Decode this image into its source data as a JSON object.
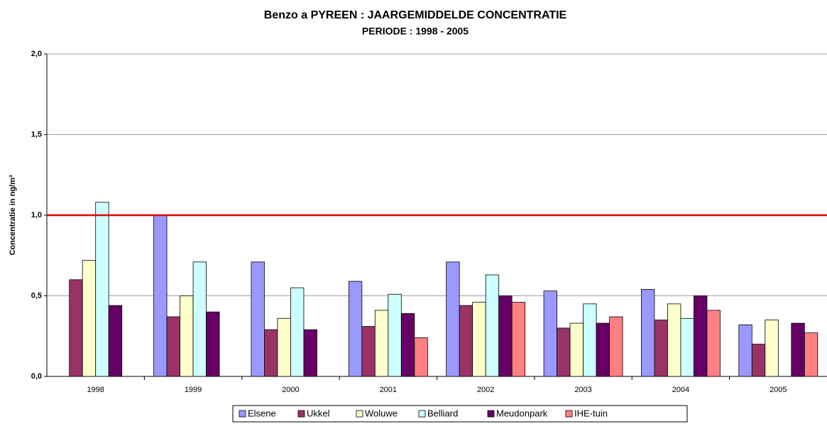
{
  "chart_data": {
    "type": "bar",
    "title": "Benzo a PYREEN : JAARGEMIDDELDE CONCENTRATIE",
    "subtitle": "PERIODE : 1998 - 2005",
    "y_label": "Concentratie in ng/m³",
    "categories": [
      "1998",
      "1999",
      "2000",
      "2001",
      "2002",
      "2003",
      "2004",
      "2005"
    ],
    "series": [
      {
        "name": "Elsene",
        "color": "#9999ff",
        "values": [
          null,
          1.0,
          0.71,
          0.59,
          0.71,
          0.53,
          0.54,
          0.32
        ]
      },
      {
        "name": "Ukkel",
        "color": "#993366",
        "values": [
          0.6,
          0.37,
          0.29,
          0.31,
          0.44,
          0.3,
          0.35,
          0.2
        ]
      },
      {
        "name": "Woluwe",
        "color": "#ffffcc",
        "values": [
          0.72,
          0.5,
          0.36,
          0.41,
          0.46,
          0.33,
          0.45,
          0.35
        ]
      },
      {
        "name": "Belliard",
        "color": "#ccffff",
        "values": [
          1.08,
          0.71,
          0.55,
          0.51,
          0.63,
          0.45,
          0.36,
          null
        ]
      },
      {
        "name": "Meudonpark",
        "color": "#660066",
        "values": [
          0.44,
          0.4,
          0.29,
          0.39,
          0.5,
          0.33,
          0.5,
          0.33
        ]
      },
      {
        "name": "IHE-tuin",
        "color": "#ff8080",
        "values": [
          null,
          null,
          null,
          0.24,
          0.46,
          0.37,
          0.41,
          0.27
        ]
      }
    ],
    "ylim": [
      0,
      2
    ],
    "yticks": [
      {
        "value": 0,
        "label": "0,0"
      },
      {
        "value": 0.5,
        "label": "0,5"
      },
      {
        "value": 1,
        "label": "1,0"
      },
      {
        "value": 1.5,
        "label": "1,5"
      },
      {
        "value": 2,
        "label": "2,0"
      }
    ],
    "grid": true,
    "reference_line": {
      "value": 1,
      "color": "#e00000"
    },
    "legend": "bottom"
  }
}
